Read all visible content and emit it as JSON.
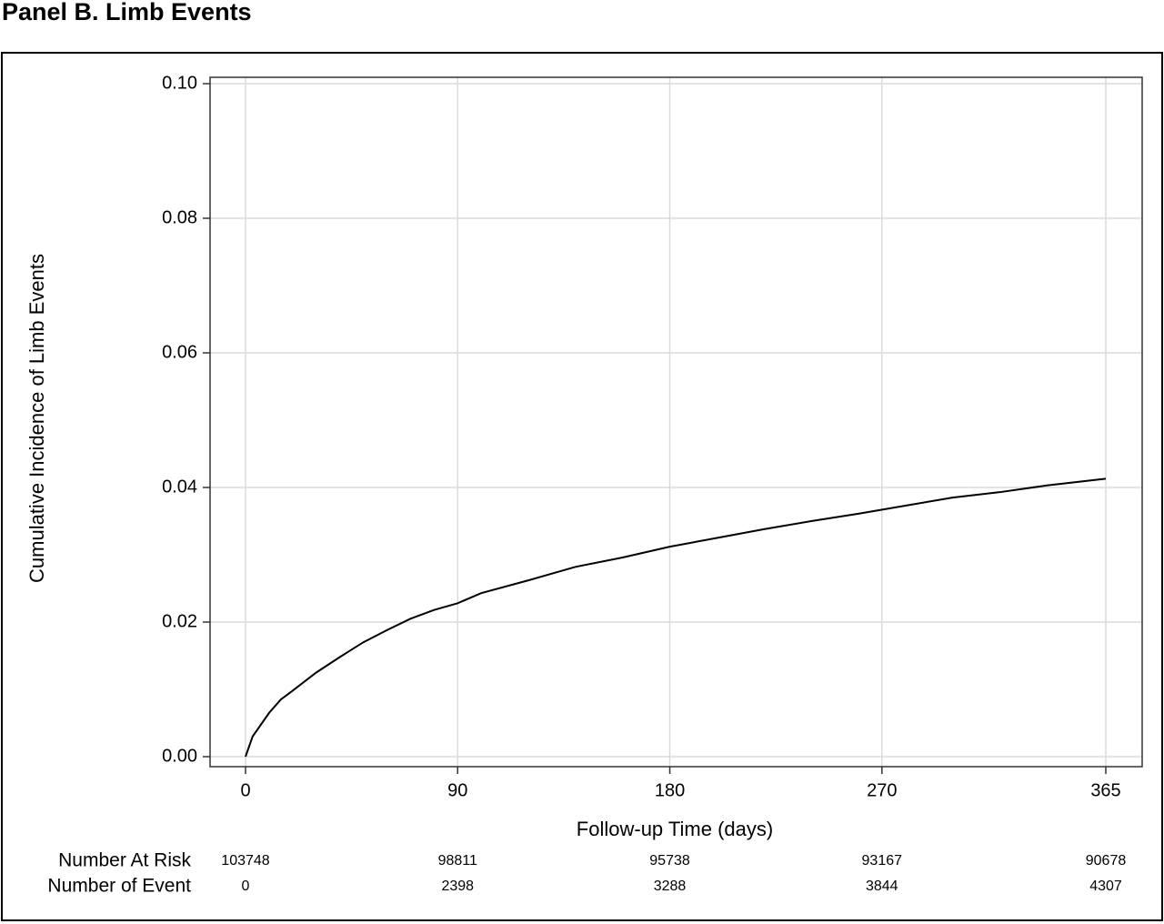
{
  "title": "Panel B. Limb Events",
  "chart_data": {
    "type": "line",
    "y_label": "Cumulative Incidence of Limb Events",
    "x_label": "Follow-up Time (days)",
    "x": [
      0,
      3,
      7,
      10,
      15,
      20,
      30,
      40,
      50,
      60,
      70,
      80,
      90,
      100,
      120,
      140,
      160,
      180,
      200,
      220,
      240,
      260,
      280,
      300,
      320,
      340,
      365
    ],
    "values": [
      0,
      0.003,
      0.005,
      0.0065,
      0.0085,
      0.0098,
      0.0125,
      0.0148,
      0.017,
      0.0188,
      0.0205,
      0.0218,
      0.0228,
      0.0243,
      0.0262,
      0.0282,
      0.0296,
      0.0312,
      0.0325,
      0.0338,
      0.035,
      0.0361,
      0.0373,
      0.0385,
      0.0393,
      0.0403,
      0.0413
    ],
    "color": "#000000",
    "xlim": [
      0,
      365
    ],
    "xticks": [
      0,
      90,
      180,
      270,
      365
    ],
    "ylim": [
      0,
      0.1
    ],
    "yticks": [
      {
        "value": 0,
        "label": "0.00"
      },
      0.02,
      0.04,
      0.06,
      0.08,
      {
        "value": 0.1,
        "label": "0.10"
      }
    ],
    "grid": true,
    "risk_table": [
      {
        "label": "Number At Risk",
        "values": [
          "103748",
          "98811",
          "95738",
          "93167",
          "90678"
        ]
      },
      {
        "label": "Number of Event",
        "values": [
          "0",
          "2398",
          "3288",
          "3844",
          "4307"
        ]
      }
    ]
  }
}
